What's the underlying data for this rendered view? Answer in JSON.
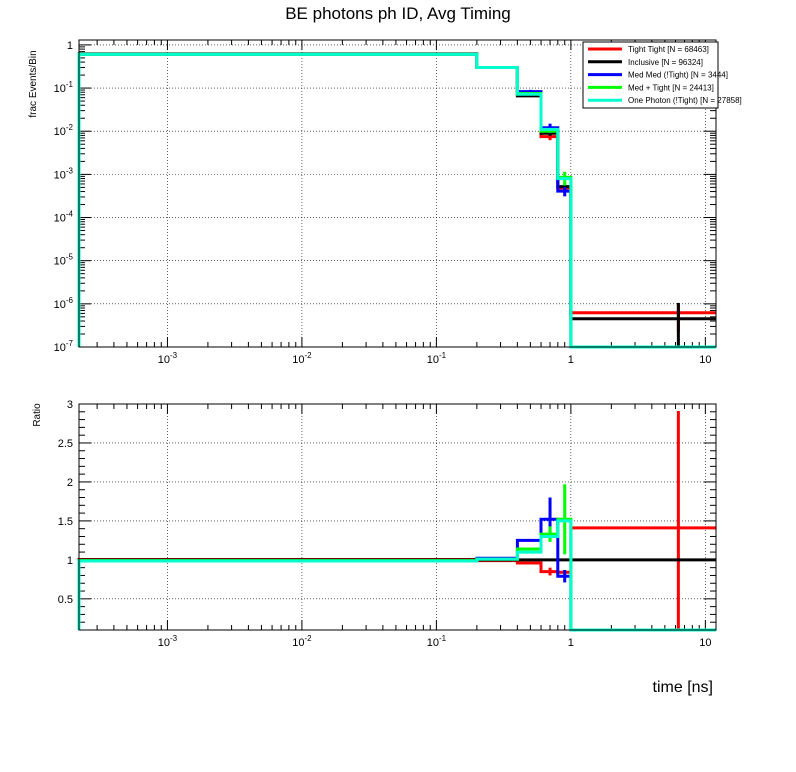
{
  "chart_data": [
    {
      "type": "line",
      "title": "BE photons ph ID, Avg Timing",
      "ylabel": "frac Events/Bin",
      "xscale": "log",
      "yscale": "log",
      "xlim": [
        0.00022,
        12
      ],
      "ylim": [
        1e-07,
        1.3
      ],
      "grid": true,
      "legend_position": "top-right",
      "x_ticks": [
        {
          "value": 0.001,
          "base": "10",
          "exp": "-3"
        },
        {
          "value": 0.01,
          "base": "10",
          "exp": "-2"
        },
        {
          "value": 0.1,
          "base": "10",
          "exp": "-1"
        },
        {
          "value": 1,
          "base": "1",
          "exp": ""
        },
        {
          "value": 10,
          "base": "10",
          "exp": ""
        }
      ],
      "y_ticks": [
        {
          "value": 1,
          "base": "1",
          "exp": ""
        },
        {
          "value": 0.1,
          "base": "10",
          "exp": "-1"
        },
        {
          "value": 0.01,
          "base": "10",
          "exp": "-2"
        },
        {
          "value": 0.001,
          "base": "10",
          "exp": "-3"
        },
        {
          "value": 0.0001,
          "base": "10",
          "exp": "-4"
        },
        {
          "value": 1e-05,
          "base": "10",
          "exp": "-5"
        },
        {
          "value": 1e-06,
          "base": "10",
          "exp": "-6"
        },
        {
          "value": 1e-07,
          "base": "10",
          "exp": "-7"
        }
      ],
      "bin_edges": [
        0.0002,
        0.2,
        0.4,
        0.6,
        0.8,
        1.0,
        12
      ],
      "series": [
        {
          "name": "Tight Tight [N = 68463]",
          "color": "#ff0000",
          "values": [
            0.62,
            0.3,
            0.068,
            0.0075,
            0.00048,
            6.2e-07
          ],
          "errors": [
            null,
            null,
            null,
            0.0013,
            0.0001,
            4e-07
          ]
        },
        {
          "name": "Inclusive [N = 96324]",
          "color": "#000000",
          "values": [
            0.62,
            0.3,
            0.066,
            0.009,
            0.00052,
            4.5e-07
          ],
          "errors": [
            null,
            null,
            null,
            0.0012,
            0.0001,
            6e-07
          ]
        },
        {
          "name": "Med Med (!Tight) [N = 3444]",
          "color": "#0000ff",
          "values": [
            0.61,
            0.3,
            0.083,
            0.012,
            0.00041,
            1e-07
          ],
          "errors": [
            null,
            null,
            0.008,
            0.003,
            0.0001,
            null
          ]
        },
        {
          "name": "Med + Tight [N = 24413]",
          "color": "#00ff00",
          "values": [
            0.61,
            0.3,
            0.075,
            0.01,
            0.00085,
            1e-07
          ],
          "errors": [
            null,
            null,
            null,
            null,
            0.0003,
            null
          ]
        },
        {
          "name": "One Photon (!Tight) [N = 27858]",
          "color": "#00ffcc",
          "values": [
            0.61,
            0.3,
            0.072,
            0.011,
            0.0008,
            1e-07
          ],
          "errors": [
            null,
            null,
            null,
            null,
            null,
            null
          ]
        }
      ]
    },
    {
      "type": "line",
      "ylabel": "Ratio",
      "xlabel": "time [ns]",
      "xscale": "log",
      "yscale": "linear",
      "xlim": [
        0.00022,
        12
      ],
      "ylim": [
        0.1,
        3
      ],
      "grid": true,
      "x_ticks": [
        {
          "value": 0.001,
          "base": "10",
          "exp": "-3"
        },
        {
          "value": 0.01,
          "base": "10",
          "exp": "-2"
        },
        {
          "value": 0.1,
          "base": "10",
          "exp": "-1"
        },
        {
          "value": 1,
          "base": "1",
          "exp": ""
        },
        {
          "value": 10,
          "base": "10",
          "exp": ""
        }
      ],
      "y_ticks": [
        "0.5",
        "1",
        "1.5",
        "2",
        "2.5",
        "3"
      ],
      "bin_edges": [
        0.0002,
        0.2,
        0.4,
        0.6,
        0.8,
        1.0,
        12
      ],
      "series": [
        {
          "name": "Tight Tight",
          "color": "#ff0000",
          "values": [
            1.005,
            0.99,
            0.96,
            0.85,
            0.84,
            1.41
          ],
          "errors": [
            null,
            null,
            null,
            0.05,
            null,
            1.5
          ]
        },
        {
          "name": "Inclusive",
          "color": "#000000",
          "values": [
            1.0,
            1.0,
            1.0,
            1.0,
            1.0,
            1.0
          ],
          "errors": [
            null,
            null,
            null,
            null,
            null,
            null
          ]
        },
        {
          "name": "Med Med (!Tight)",
          "color": "#0000ff",
          "values": [
            0.985,
            1.02,
            1.25,
            1.52,
            0.79,
            0.1
          ],
          "errors": [
            null,
            null,
            null,
            0.28,
            0.08,
            null
          ]
        },
        {
          "name": "Med + Tight",
          "color": "#00ff00",
          "values": [
            0.99,
            1.01,
            1.14,
            1.33,
            1.52,
            0.1
          ],
          "errors": [
            null,
            null,
            null,
            0.1,
            0.45,
            null
          ]
        },
        {
          "name": "One Photon (!Tight)",
          "color": "#00ffcc",
          "values": [
            0.985,
            1.01,
            1.1,
            1.3,
            1.5,
            0.1
          ],
          "errors": [
            null,
            null,
            null,
            null,
            null,
            null
          ]
        }
      ]
    }
  ]
}
